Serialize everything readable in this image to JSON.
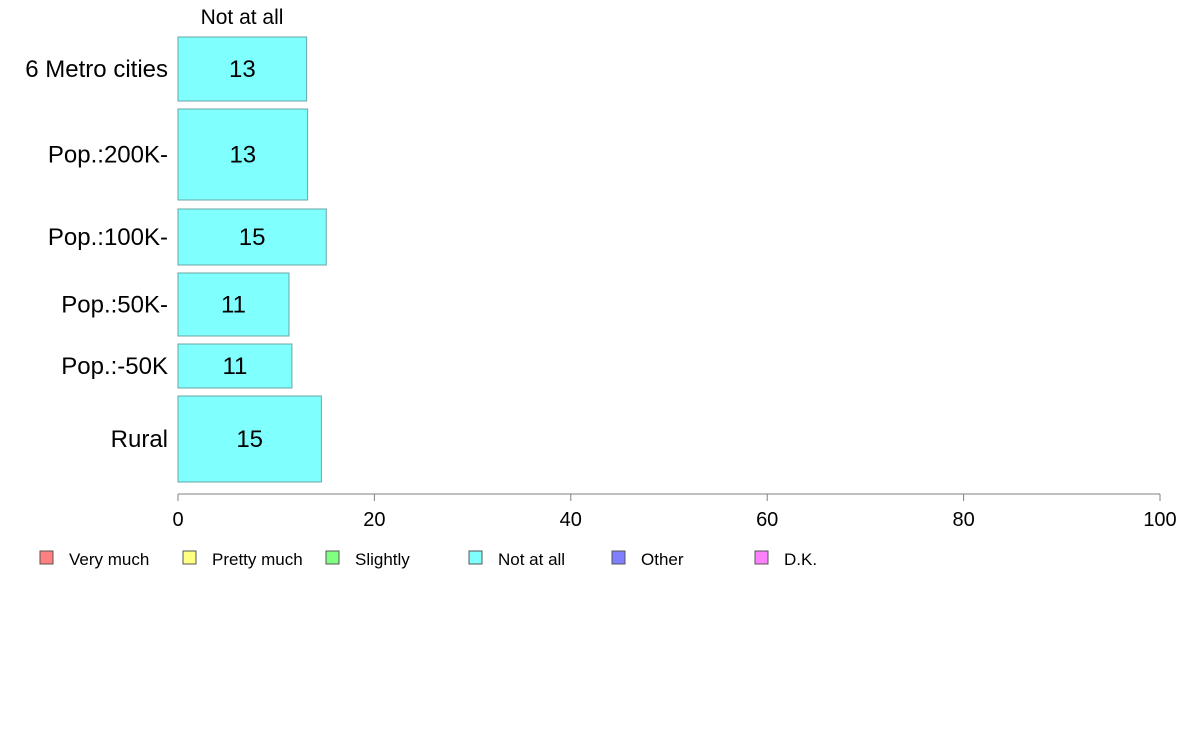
{
  "chart_data": {
    "type": "bar",
    "orientation": "horizontal",
    "series_header": "Not at all",
    "categories": [
      "6 Metro cities",
      "Pop.:200K-",
      "Pop.:100K-",
      "Pop.:50K-",
      "Pop.:-50K",
      "Rural"
    ],
    "series": [
      {
        "name": "Not at all",
        "color": "#80ffff",
        "values": [
          13,
          13,
          15,
          11,
          11,
          15
        ]
      }
    ],
    "bar_values_precise": [
      13.1,
      13.2,
      15.1,
      11.3,
      11.6,
      14.6
    ],
    "xlim": [
      0,
      100
    ],
    "xticks": [
      0,
      20,
      40,
      60,
      80,
      100
    ],
    "xlabel": "",
    "ylabel": "",
    "grid": false,
    "legend_position": "bottom",
    "legend": [
      {
        "label": "Very much",
        "color": "#ff8080"
      },
      {
        "label": "Pretty much",
        "color": "#ffff80"
      },
      {
        "label": "Slightly",
        "color": "#80ff80"
      },
      {
        "label": "Not at all",
        "color": "#80ffff"
      },
      {
        "label": "Other",
        "color": "#8080ff"
      },
      {
        "label": "D.K.",
        "color": "#ff80ff"
      }
    ]
  }
}
